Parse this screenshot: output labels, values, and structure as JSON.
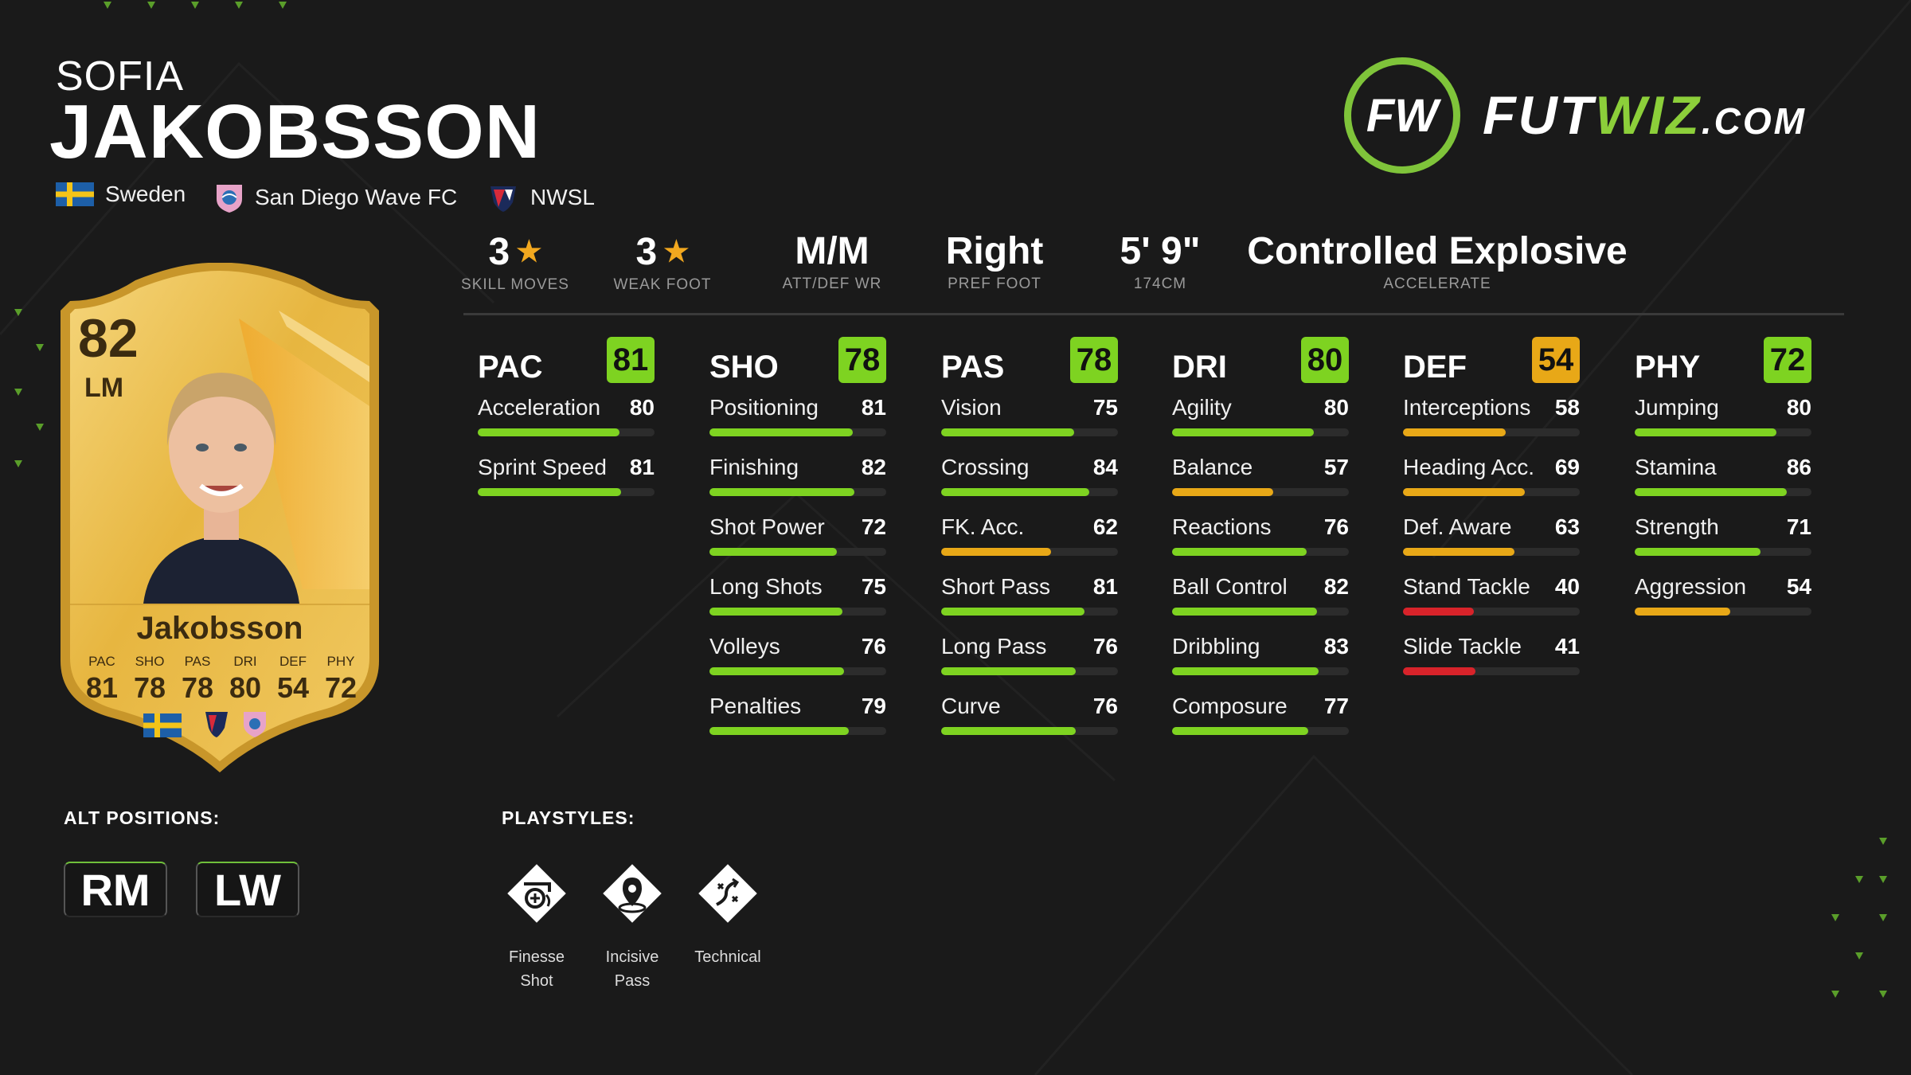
{
  "player": {
    "first_name": "SOFIA",
    "last_name": "JAKOBSSON",
    "nation": "Sweden",
    "club": "San Diego Wave FC",
    "league": "NWSL"
  },
  "logo": {
    "brand_a": "FUT",
    "brand_b": "WIZ",
    "domain": ".COM",
    "mark": "FW"
  },
  "info": [
    {
      "value": "3",
      "star": true,
      "label": "SKILL MOVES"
    },
    {
      "value": "3",
      "star": true,
      "label": "WEAK FOOT"
    },
    {
      "value": "M/M",
      "star": false,
      "label": "ATT/DEF WR"
    },
    {
      "value": "Right",
      "star": false,
      "label": "PREF FOOT"
    },
    {
      "value": "5' 9\"",
      "star": false,
      "label": "174CM"
    },
    {
      "value": "Controlled Explosive",
      "star": false,
      "label": "ACCELERATE"
    }
  ],
  "colors": {
    "green": "#7ed321",
    "yellow": "#e8a817",
    "red": "#d8232a",
    "lime": "#8ccf3a"
  },
  "stats": [
    {
      "name": "PAC",
      "value": "81",
      "color": "green",
      "attrs": [
        {
          "label": "Acceleration",
          "value": "80",
          "color": "green"
        },
        {
          "label": "Sprint Speed",
          "value": "81",
          "color": "green"
        }
      ]
    },
    {
      "name": "SHO",
      "value": "78",
      "color": "green",
      "attrs": [
        {
          "label": "Positioning",
          "value": "81",
          "color": "green"
        },
        {
          "label": "Finishing",
          "value": "82",
          "color": "green"
        },
        {
          "label": "Shot Power",
          "value": "72",
          "color": "green"
        },
        {
          "label": "Long Shots",
          "value": "75",
          "color": "green"
        },
        {
          "label": "Volleys",
          "value": "76",
          "color": "green"
        },
        {
          "label": "Penalties",
          "value": "79",
          "color": "green"
        }
      ]
    },
    {
      "name": "PAS",
      "value": "78",
      "color": "green",
      "attrs": [
        {
          "label": "Vision",
          "value": "75",
          "color": "green"
        },
        {
          "label": "Crossing",
          "value": "84",
          "color": "green"
        },
        {
          "label": "FK. Acc.",
          "value": "62",
          "color": "yellow"
        },
        {
          "label": "Short Pass",
          "value": "81",
          "color": "green"
        },
        {
          "label": "Long Pass",
          "value": "76",
          "color": "green"
        },
        {
          "label": "Curve",
          "value": "76",
          "color": "green"
        }
      ]
    },
    {
      "name": "DRI",
      "value": "80",
      "color": "green",
      "attrs": [
        {
          "label": "Agility",
          "value": "80",
          "color": "green"
        },
        {
          "label": "Balance",
          "value": "57",
          "color": "yellow"
        },
        {
          "label": "Reactions",
          "value": "76",
          "color": "green"
        },
        {
          "label": "Ball Control",
          "value": "82",
          "color": "green"
        },
        {
          "label": "Dribbling",
          "value": "83",
          "color": "green"
        },
        {
          "label": "Composure",
          "value": "77",
          "color": "green"
        }
      ]
    },
    {
      "name": "DEF",
      "value": "54",
      "color": "yellow",
      "attrs": [
        {
          "label": "Interceptions",
          "value": "58",
          "color": "yellow"
        },
        {
          "label": "Heading Acc.",
          "value": "69",
          "color": "yellow"
        },
        {
          "label": "Def. Aware",
          "value": "63",
          "color": "yellow"
        },
        {
          "label": "Stand Tackle",
          "value": "40",
          "color": "red"
        },
        {
          "label": "Slide Tackle",
          "value": "41",
          "color": "red"
        }
      ]
    },
    {
      "name": "PHY",
      "value": "72",
      "color": "green",
      "attrs": [
        {
          "label": "Jumping",
          "value": "80",
          "color": "green"
        },
        {
          "label": "Stamina",
          "value": "86",
          "color": "green"
        },
        {
          "label": "Strength",
          "value": "71",
          "color": "green"
        },
        {
          "label": "Aggression",
          "value": "54",
          "color": "yellow"
        }
      ]
    }
  ],
  "card": {
    "rating": "82",
    "position": "LM",
    "name": "Jakobsson",
    "stat_labels": [
      "PAC",
      "SHO",
      "PAS",
      "DRI",
      "DEF",
      "PHY"
    ],
    "stat_values": [
      "81",
      "78",
      "78",
      "80",
      "54",
      "72"
    ]
  },
  "alt_positions": {
    "title": "ALT POSITIONS:",
    "items": [
      "RM",
      "LW"
    ]
  },
  "playstyles": {
    "title": "PLAYSTYLES:",
    "items": [
      {
        "line1": "Finesse",
        "line2": "Shot",
        "icon": "finesse-shot-icon"
      },
      {
        "line1": "Incisive",
        "line2": "Pass",
        "icon": "incisive-pass-icon"
      },
      {
        "line1": "Technical",
        "line2": "",
        "icon": "technical-icon"
      }
    ]
  }
}
